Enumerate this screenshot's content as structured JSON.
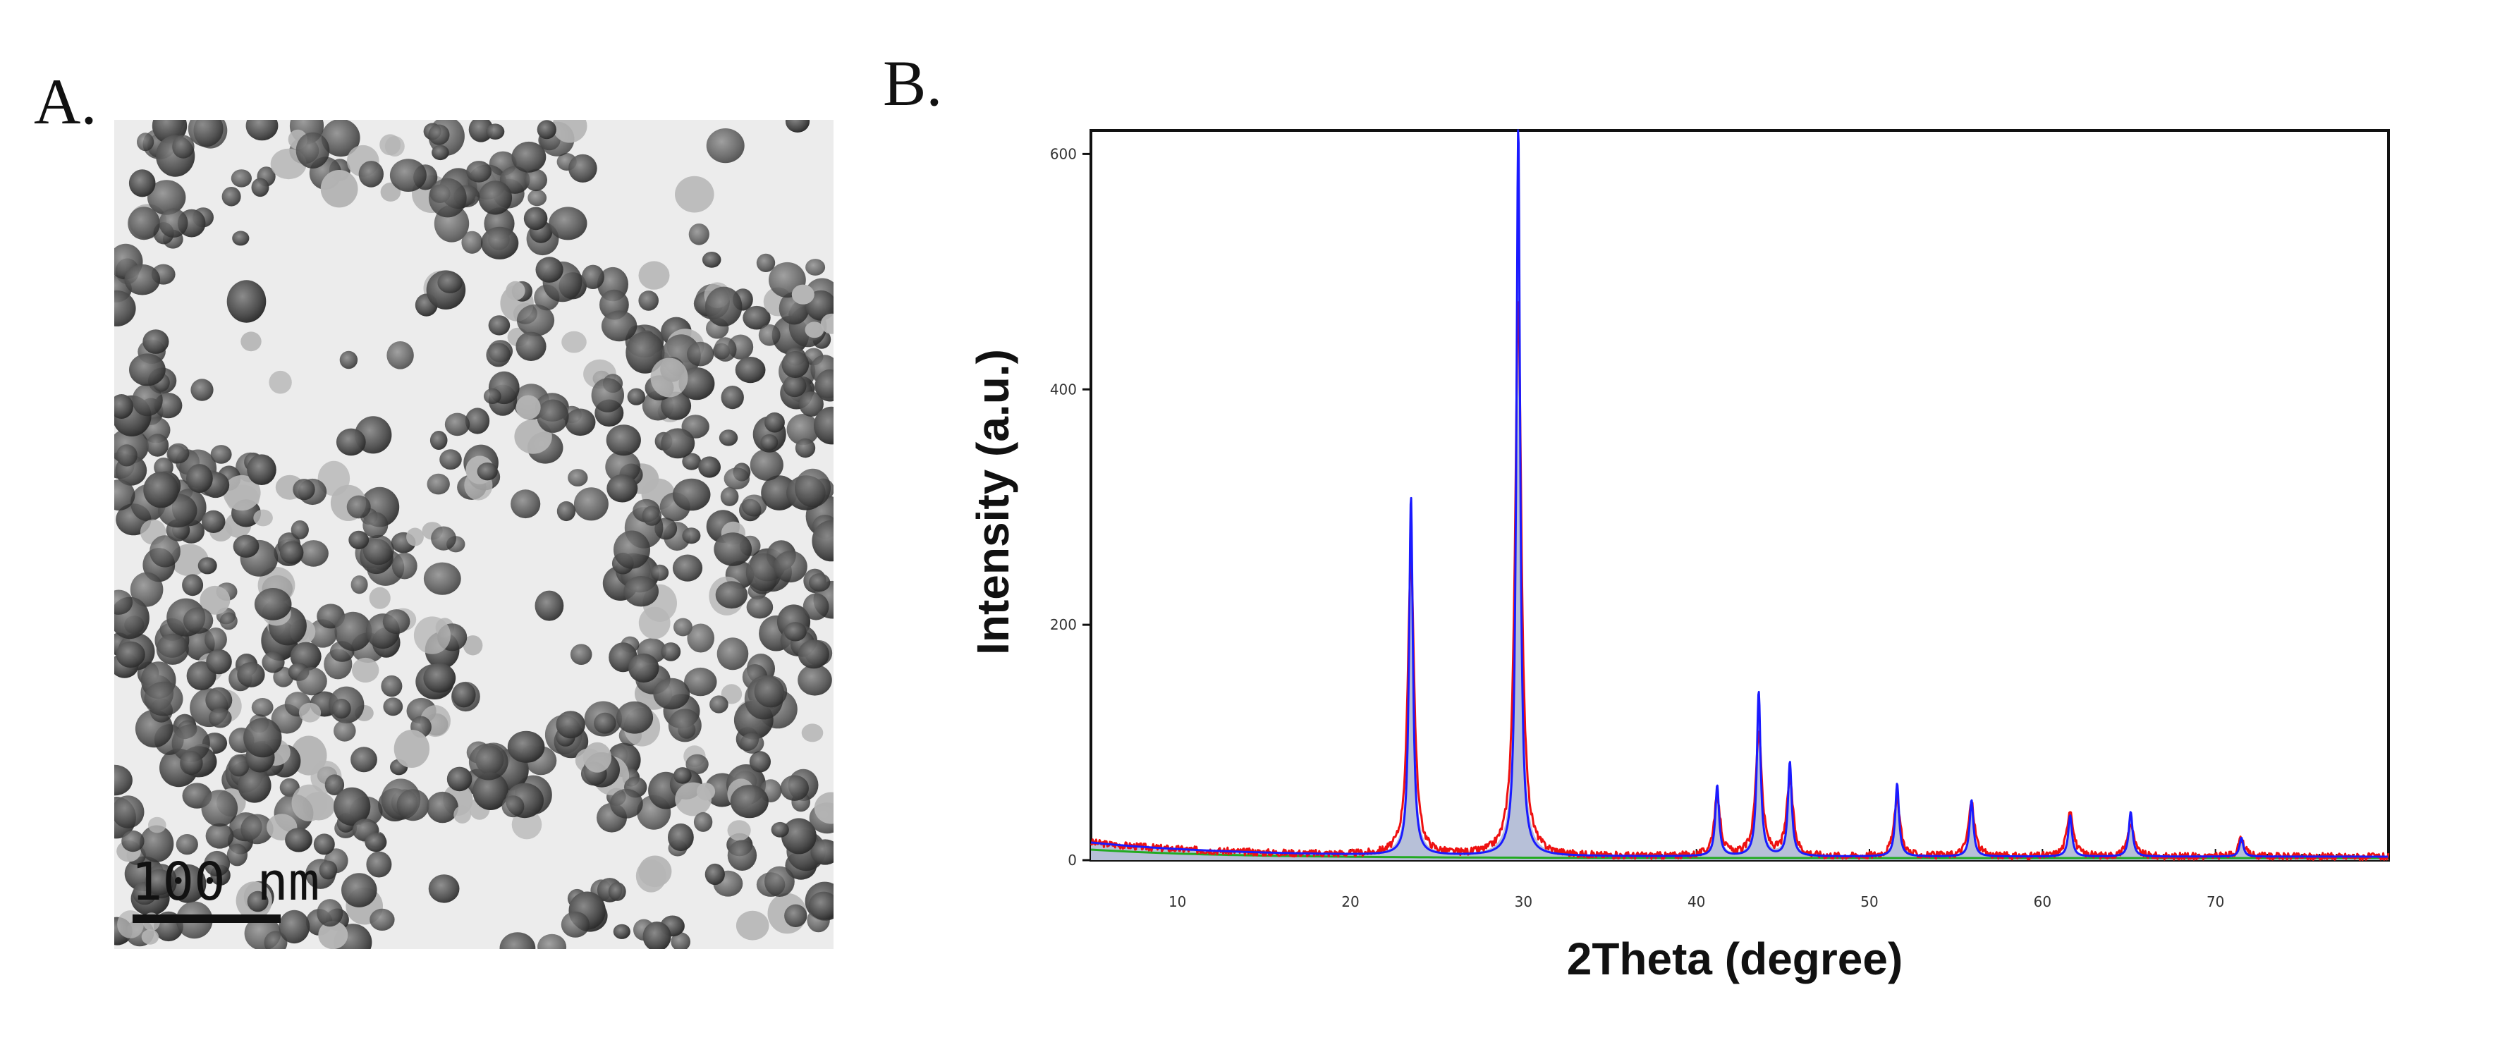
{
  "panels": {
    "a_label": "A.",
    "b_label": "B."
  },
  "tem": {
    "scale_bar_label": "100 nm",
    "scale_bar_value_nm": 100
  },
  "chart_data": {
    "type": "line",
    "title": "",
    "xlabel": "2Theta (degree)",
    "ylabel": "Intensity (a.u.)",
    "xlim": [
      5,
      80
    ],
    "ylim": [
      0,
      620
    ],
    "xticks": [
      10,
      20,
      30,
      40,
      50,
      60,
      70
    ],
    "yticks": [
      0,
      200,
      400,
      600
    ],
    "grid": false,
    "legend": "none",
    "peaks": [
      {
        "x": 23.5,
        "blue": 305,
        "red": 255
      },
      {
        "x": 29.7,
        "blue": 620,
        "red": 470
      },
      {
        "x": 41.2,
        "blue": 60,
        "red": 50
      },
      {
        "x": 43.6,
        "blue": 140,
        "red": 105
      },
      {
        "x": 45.4,
        "blue": 80,
        "red": 65
      },
      {
        "x": 51.6,
        "blue": 62,
        "red": 48
      },
      {
        "x": 55.9,
        "blue": 48,
        "red": 45
      },
      {
        "x": 61.6,
        "blue": 35,
        "red": 40
      },
      {
        "x": 65.1,
        "blue": 38,
        "red": 28
      },
      {
        "x": 71.5,
        "blue": 16,
        "red": 15
      }
    ],
    "series": [
      {
        "color": "#1a1aff"
      },
      {
        "color": "#ee1111"
      },
      {
        "color": "#22aa22"
      }
    ]
  }
}
